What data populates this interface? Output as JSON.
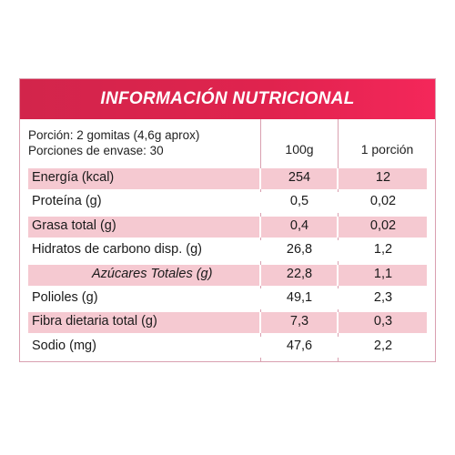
{
  "title": "INFORMACIÓN NUTRICIONAL",
  "serving_info": {
    "portion": "Porción: 2 gomitas (4,6g aprox)",
    "servings_per_container": "Porciones de envase: 30"
  },
  "columns": [
    "100g",
    "1 porción"
  ],
  "rows": [
    {
      "label": "Energía (kcal)",
      "per_100g": "254",
      "per_portion": "12",
      "shaded": true,
      "indent": false
    },
    {
      "label": "Proteína (g)",
      "per_100g": "0,5",
      "per_portion": "0,02",
      "shaded": false,
      "indent": false
    },
    {
      "label": "Grasa total (g)",
      "per_100g": "0,4",
      "per_portion": "0,02",
      "shaded": true,
      "indent": false
    },
    {
      "label": "Hidratos de carbono disp. (g)",
      "per_100g": "26,8",
      "per_portion": "1,2",
      "shaded": false,
      "indent": false
    },
    {
      "label": "Azúcares Totales (g)",
      "per_100g": "22,8",
      "per_portion": "1,1",
      "shaded": true,
      "indent": true
    },
    {
      "label": "Polioles (g)",
      "per_100g": "49,1",
      "per_portion": "2,3",
      "shaded": false,
      "indent": false
    },
    {
      "label": "Fibra dietaria total (g)",
      "per_100g": "7,3",
      "per_portion": "0,3",
      "shaded": true,
      "indent": false
    },
    {
      "label": "Sodio (mg)",
      "per_100g": "47,6",
      "per_portion": "2,2",
      "shaded": false,
      "indent": false
    }
  ],
  "colors": {
    "header": "#e0234e",
    "row_shade": "#f5c9d1",
    "border": "#d9a0b0"
  }
}
